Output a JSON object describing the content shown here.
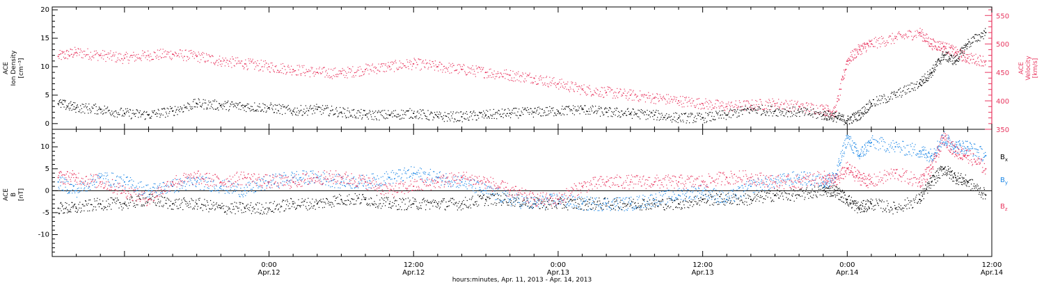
{
  "colors": {
    "density": "#000000",
    "velocity": "#e8365f",
    "bx": "#000000",
    "by": "#1a86e6",
    "bz": "#e8365f"
  },
  "xlabel": "hours:minutes, Apr. 11, 2013 - Apr. 14, 2013",
  "x_ticks": [
    {
      "label": "0:00",
      "date": "Apr.12"
    },
    {
      "label": "12:00",
      "date": "Apr.12"
    },
    {
      "label": "0:00",
      "date": "Apr.13"
    },
    {
      "label": "12:00",
      "date": "Apr.13"
    },
    {
      "label": "0:00",
      "date": "Apr.14"
    },
    {
      "label": "12:00",
      "date": "Apr.14"
    }
  ],
  "chart_data": [
    {
      "type": "scatter",
      "panel": "top",
      "left_axis": {
        "label_lines": [
          "ACE",
          "Ion Density",
          "[cm⁻³]"
        ],
        "ylim": [
          -1,
          20.5
        ],
        "ticks": [
          0,
          5,
          10,
          15,
          20
        ]
      },
      "right_axis": {
        "label_lines": [
          "ACE",
          "Velocity",
          "[km/s]"
        ],
        "ylim": [
          350,
          565
        ],
        "ticks": [
          350,
          400,
          450,
          500,
          550
        ]
      },
      "x_unit": "hours since 2013-04-11 00:00",
      "xlim": [
        6,
        84
      ],
      "series": [
        {
          "name": "Ion Density",
          "axis": "left",
          "x": [
            6.5,
            8,
            10,
            12,
            14,
            16,
            18,
            20,
            22,
            24,
            26,
            28,
            30,
            32,
            34,
            36,
            38,
            40,
            42,
            44,
            46,
            48,
            50,
            52,
            54,
            56,
            58,
            60,
            62,
            64,
            66,
            68,
            70,
            71,
            72,
            73,
            74,
            76,
            78,
            79,
            80,
            81,
            82,
            83.5
          ],
          "values": [
            3.5,
            2.8,
            2.5,
            1.8,
            1.5,
            2.2,
            3.5,
            3.2,
            3,
            2.8,
            2.2,
            2.5,
            2,
            1.5,
            1.5,
            1.8,
            1.2,
            1.2,
            1.5,
            1.8,
            2,
            2.2,
            2.5,
            2,
            1.8,
            1.5,
            1,
            1,
            1.5,
            2.5,
            2.2,
            2,
            1.5,
            1.2,
            0.5,
            1.5,
            3.5,
            5,
            7,
            9,
            12,
            11,
            14,
            16
          ]
        },
        {
          "name": "Velocity",
          "axis": "right",
          "x": [
            6.5,
            8,
            10,
            12,
            14,
            16,
            18,
            20,
            22,
            24,
            26,
            28,
            30,
            32,
            34,
            36,
            38,
            40,
            42,
            44,
            46,
            48,
            50,
            52,
            54,
            56,
            58,
            60,
            62,
            64,
            66,
            68,
            70,
            71,
            72,
            73,
            74,
            76,
            78,
            79,
            80,
            81,
            82,
            83.5
          ],
          "values": [
            478,
            485,
            480,
            475,
            480,
            482,
            478,
            470,
            465,
            460,
            455,
            450,
            448,
            455,
            460,
            465,
            460,
            455,
            450,
            445,
            440,
            430,
            420,
            415,
            410,
            405,
            400,
            395,
            390,
            392,
            395,
            390,
            385,
            380,
            470,
            490,
            500,
            510,
            520,
            500,
            495,
            485,
            475,
            470
          ]
        }
      ]
    },
    {
      "type": "scatter",
      "panel": "bottom",
      "left_axis": {
        "label_lines": [
          "ACE",
          "B",
          "[nT]"
        ],
        "ylim": [
          -15,
          14
        ],
        "ticks": [
          -10,
          -5,
          0,
          5,
          10
        ]
      },
      "x_unit": "hours since 2013-04-11 00:00",
      "xlim": [
        6,
        84
      ],
      "zero_line": true,
      "series": [
        {
          "name": "Bx",
          "x": [
            6.5,
            8,
            10,
            12,
            14,
            16,
            18,
            20,
            22,
            24,
            26,
            28,
            30,
            32,
            34,
            36,
            38,
            40,
            42,
            44,
            46,
            48,
            50,
            52,
            54,
            56,
            58,
            60,
            62,
            64,
            66,
            68,
            70,
            71,
            72,
            73,
            74,
            76,
            78,
            79,
            80,
            81,
            82,
            83.5
          ],
          "values": [
            -4,
            -4,
            -3,
            -3,
            -2,
            -3,
            -3,
            -4,
            -4,
            -4,
            -3,
            -3,
            -2,
            -2,
            -3,
            -3,
            -3,
            -3,
            -2,
            -2,
            -3,
            -3,
            -3,
            -3,
            -3,
            -3,
            -3,
            -2,
            -2,
            -2,
            -1,
            -1,
            0,
            0,
            -2,
            -4,
            -3,
            -4,
            -2,
            2,
            5,
            3,
            2,
            -1
          ]
        },
        {
          "name": "By",
          "x": [
            6.5,
            8,
            10,
            12,
            14,
            16,
            18,
            20,
            22,
            24,
            26,
            28,
            30,
            32,
            34,
            36,
            38,
            40,
            42,
            44,
            46,
            48,
            50,
            52,
            54,
            56,
            58,
            60,
            62,
            64,
            66,
            68,
            70,
            71,
            72,
            73,
            74,
            76,
            78,
            79,
            80,
            81,
            82,
            83.5
          ],
          "values": [
            2,
            0,
            3,
            2,
            0,
            1,
            2,
            1,
            0,
            2,
            3,
            3,
            2,
            2,
            3,
            4,
            3,
            2,
            0,
            -2,
            -3,
            -2,
            -3,
            -3,
            -3,
            -2,
            -1,
            0,
            -2,
            1,
            2,
            3,
            2,
            3,
            12,
            8,
            11,
            10,
            9,
            8,
            12,
            10,
            10,
            8
          ]
        },
        {
          "name": "Bz",
          "x": [
            6.5,
            8,
            10,
            12,
            14,
            16,
            18,
            20,
            22,
            24,
            26,
            28,
            30,
            32,
            34,
            36,
            38,
            40,
            42,
            44,
            46,
            48,
            50,
            52,
            54,
            56,
            58,
            60,
            62,
            64,
            66,
            68,
            70,
            71,
            72,
            73,
            74,
            76,
            78,
            79,
            80,
            81,
            82,
            83.5
          ],
          "values": [
            3,
            3,
            2,
            0,
            -2,
            2,
            3,
            2,
            3,
            2,
            2,
            3,
            3,
            2,
            0,
            1,
            2,
            3,
            2,
            0,
            -2,
            -2,
            1,
            2,
            2,
            2,
            2,
            2,
            3,
            3,
            2,
            2,
            3,
            2,
            5,
            3,
            2,
            4,
            2,
            5,
            12,
            9,
            8,
            5
          ]
        }
      ]
    }
  ],
  "legend_bottom": [
    {
      "name": "B",
      "sub": "x"
    },
    {
      "name": "B",
      "sub": "y"
    },
    {
      "name": "B",
      "sub": "z"
    }
  ]
}
